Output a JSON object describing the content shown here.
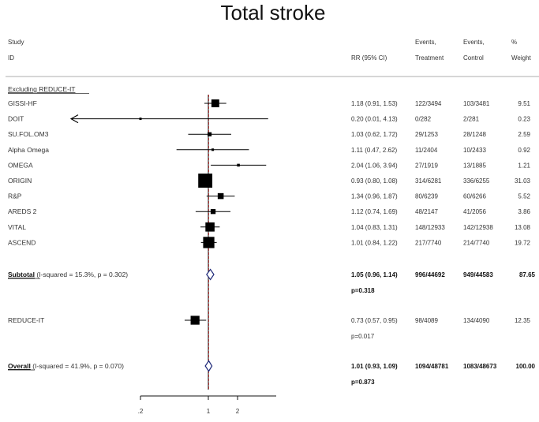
{
  "chart_data": {
    "type": "forest",
    "title": "Total stroke",
    "x_scale": "log",
    "x_ticks": [
      {
        "value": 0.2,
        "label": ".2"
      },
      {
        "value": 1,
        "label": "1"
      },
      {
        "value": 2,
        "label": "2"
      }
    ],
    "x_range": [
      0.2,
      5
    ],
    "arrow_floor": 0.06,
    "reference_line": 1,
    "dashed_line": 1.01,
    "headers": {
      "study1": "Study",
      "study2": "ID",
      "rr": "RR (95% CI)",
      "ev_t1": "Events,",
      "ev_t2": "Treatment",
      "ev_c1": "Events,",
      "ev_c2": "Control",
      "w1": "%",
      "w2": "Weight"
    },
    "group_label": "Excluding REDUCE-IT",
    "studies": [
      {
        "name": "GISSI-HF",
        "rr": 1.18,
        "lo": 0.91,
        "hi": 1.53,
        "ci_text": "1.18 (0.91, 1.53)",
        "treatment": "122/3494",
        "control": "103/3481",
        "weight": "9.51",
        "w": 9.51
      },
      {
        "name": "DOIT",
        "rr": 0.2,
        "lo": 0.01,
        "hi": 4.13,
        "ci_text": "0.20 (0.01, 4.13)",
        "treatment": "0/282",
        "control": "2/281",
        "weight": "0.23",
        "w": 0.23
      },
      {
        "name": "SU.FOL.OM3",
        "rr": 1.03,
        "lo": 0.62,
        "hi": 1.72,
        "ci_text": "1.03 (0.62, 1.72)",
        "treatment": "29/1253",
        "control": "28/1248",
        "weight": "2.59",
        "w": 2.59
      },
      {
        "name": "Alpha Omega",
        "rr": 1.11,
        "lo": 0.47,
        "hi": 2.62,
        "ci_text": "1.11 (0.47, 2.62)",
        "treatment": "11/2404",
        "control": "10/2433",
        "weight": "0.92",
        "w": 0.92
      },
      {
        "name": "OMEGA",
        "rr": 2.04,
        "lo": 1.06,
        "hi": 3.94,
        "ci_text": "2.04 (1.06, 3.94)",
        "treatment": "27/1919",
        "control": "13/1885",
        "weight": "1.21",
        "w": 1.21
      },
      {
        "name": "ORIGIN",
        "rr": 0.93,
        "lo": 0.8,
        "hi": 1.08,
        "ci_text": "0.93 (0.80, 1.08)",
        "treatment": "314/6281",
        "control": "336/6255",
        "weight": "31.03",
        "w": 31.03
      },
      {
        "name": "R&P",
        "rr": 1.34,
        "lo": 0.96,
        "hi": 1.87,
        "ci_text": "1.34 (0.96, 1.87)",
        "treatment": "80/6239",
        "control": "60/6266",
        "weight": "5.52",
        "w": 5.52
      },
      {
        "name": "AREDS 2",
        "rr": 1.12,
        "lo": 0.74,
        "hi": 1.69,
        "ci_text": "1.12 (0.74, 1.69)",
        "treatment": "48/2147",
        "control": "41/2056",
        "weight": "3.86",
        "w": 3.86
      },
      {
        "name": "VITAL",
        "rr": 1.04,
        "lo": 0.83,
        "hi": 1.31,
        "ci_text": "1.04 (0.83, 1.31)",
        "treatment": "148/12933",
        "control": "142/12938",
        "weight": "13.08",
        "w": 13.08
      },
      {
        "name": "ASCEND",
        "rr": 1.01,
        "lo": 0.84,
        "hi": 1.22,
        "ci_text": "1.01 (0.84, 1.22)",
        "treatment": "217/7740",
        "control": "214/7740",
        "weight": "19.72",
        "w": 19.72
      }
    ],
    "subtotal": {
      "label_bold": "Subtotal",
      "label_rest": "(I-squared = 15.3%, p = 0.302)",
      "rr": 1.05,
      "lo": 0.96,
      "hi": 1.14,
      "ci_text": "1.05 (0.96, 1.14)",
      "treatment": "996/44692",
      "control": "949/44583",
      "weight": "87.65",
      "p_text": "p=0.318"
    },
    "reduce_it": {
      "name": "REDUCE-IT",
      "rr": 0.73,
      "lo": 0.57,
      "hi": 0.95,
      "w": 12.35,
      "ci_text": "0.73 (0.57, 0.95)",
      "treatment": "98/4089",
      "control": "134/4090",
      "weight": "12.35",
      "p_text": "p=0.017"
    },
    "overall": {
      "label_bold": "Overall",
      "label_rest": "(I-squared = 41.9%, p = 0.070)",
      "rr": 1.01,
      "lo": 0.93,
      "hi": 1.09,
      "ci_text": "1.01 (0.93, 1.09)",
      "treatment": "1094/48781",
      "control": "1083/48673",
      "weight": "100.00",
      "p_text": "p=0.873"
    }
  }
}
